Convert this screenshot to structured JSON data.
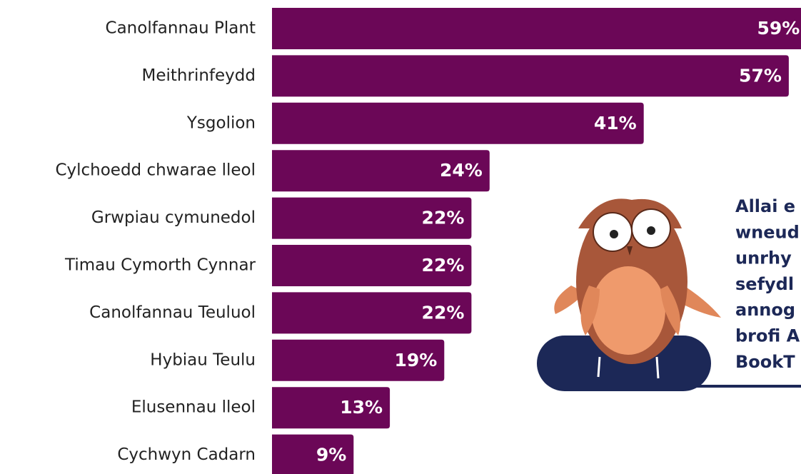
{
  "chart_data": {
    "type": "bar",
    "orientation": "horizontal",
    "categories": [
      "Canolfannau Plant",
      "Meithrinfeydd",
      "Ysgolion",
      "Cylchoedd chwarae lleol",
      "Grwpiau cymunedol",
      "Timau Cymorth Cynnar",
      "Canolfannau Teuluol",
      "Hybiau Teulu",
      "Elusennau lleol",
      "Cychwyn Cadarn"
    ],
    "values": [
      59,
      57,
      41,
      24,
      22,
      22,
      22,
      19,
      13,
      9
    ],
    "value_labels": [
      "59%",
      "57%",
      "41%",
      "24%",
      "22%",
      "22%",
      "22%",
      "19%",
      "13%",
      "9%"
    ],
    "color": "#6b0757",
    "annotation_lines": [
      "Allai e",
      "wneud",
      "unrhy",
      "sefydl",
      "annog",
      "brofi A",
      "BookT"
    ]
  }
}
